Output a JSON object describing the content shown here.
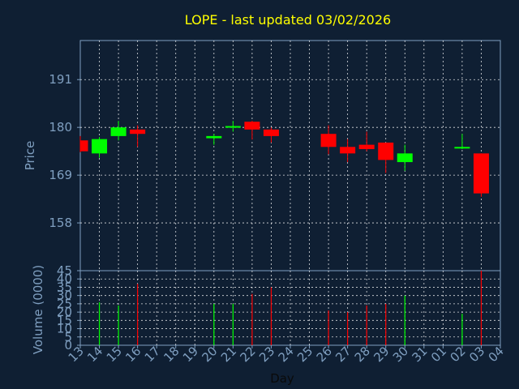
{
  "chart_data": {
    "type": "candlestick",
    "title": "LOPE - last updated 03/02/2026",
    "xlabel": "Day",
    "price_panel": {
      "ylabel": "Price",
      "ylim": [
        147,
        200
      ],
      "yticks": [
        158,
        169,
        180,
        191
      ],
      "grid": true
    },
    "volume_panel": {
      "ylabel": "Volume (0000)",
      "ylim": [
        0,
        45
      ],
      "yticks": [
        0,
        5,
        10,
        15,
        20,
        25,
        30,
        35,
        40,
        45
      ],
      "grid": true
    },
    "x_tick_labels": [
      "13",
      "14",
      "15",
      "16",
      "17",
      "18",
      "19",
      "20",
      "21",
      "22",
      "23",
      "24",
      "25",
      "26",
      "27",
      "28",
      "29",
      "30",
      "31",
      "01",
      "02",
      "03",
      "04"
    ],
    "candles": [
      {
        "x": 13,
        "open": 177.0,
        "high": 178.0,
        "low": 174.3,
        "close": 174.5,
        "volume": 0
      },
      {
        "x": 14,
        "open": 174.0,
        "high": 177.8,
        "low": 173.0,
        "close": 177.3,
        "volume": 26
      },
      {
        "x": 15,
        "open": 178.0,
        "high": 181.5,
        "low": 177.0,
        "close": 180.0,
        "volume": 24
      },
      {
        "x": 16,
        "open": 179.5,
        "high": 180.5,
        "low": 175.5,
        "close": 178.5,
        "volume": 37
      },
      {
        "x": 20,
        "open": 177.5,
        "high": 178.5,
        "low": 176.0,
        "close": 178.0,
        "volume": 25
      },
      {
        "x": 21,
        "open": 180.0,
        "high": 181.5,
        "low": 179.0,
        "close": 180.3,
        "volume": 25
      },
      {
        "x": 22,
        "open": 181.3,
        "high": 181.5,
        "low": 177.2,
        "close": 179.5,
        "volume": 31
      },
      {
        "x": 23,
        "open": 179.5,
        "high": 180.0,
        "low": 176.5,
        "close": 178.0,
        "volume": 35
      },
      {
        "x": 26,
        "open": 178.5,
        "high": 180.5,
        "low": 173.8,
        "close": 175.5,
        "volume": 21
      },
      {
        "x": 27,
        "open": 175.5,
        "high": 177.3,
        "low": 172.0,
        "close": 174.0,
        "volume": 20
      },
      {
        "x": 28,
        "open": 176.0,
        "high": 179.0,
        "low": 174.5,
        "close": 175.0,
        "volume": 24
      },
      {
        "x": 29,
        "open": 176.5,
        "high": 176.5,
        "low": 169.5,
        "close": 172.5,
        "volume": 25
      },
      {
        "x": 30,
        "open": 172.0,
        "high": 176.0,
        "low": 170.0,
        "close": 174.0,
        "volume": 30
      },
      {
        "x": "02",
        "open": 175.2,
        "high": 178.5,
        "low": 175.0,
        "close": 175.5,
        "volume": 19
      },
      {
        "x": "03",
        "open": 174.0,
        "high": 174.0,
        "low": 164.0,
        "close": 164.8,
        "volume": 45
      }
    ],
    "colors": {
      "up": "#00ff00",
      "down": "#ff0000",
      "background": "#0f1f33",
      "panel_border": "#7f9fc0",
      "grid": "#ffffff",
      "title": "#ffff00",
      "text": "#7f9fc0"
    }
  }
}
